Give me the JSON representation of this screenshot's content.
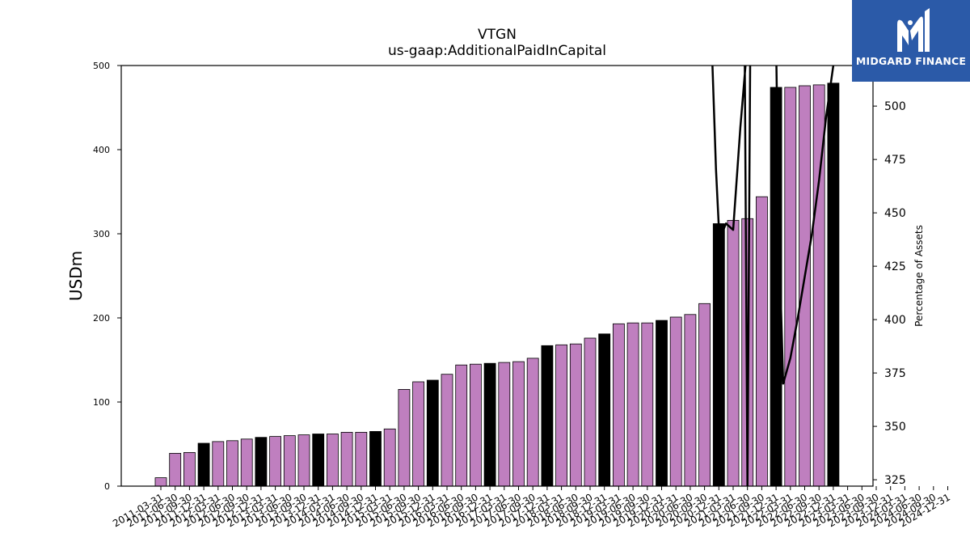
{
  "chart_data": {
    "type": "bar",
    "title": "VTGN",
    "subtitle": "us-gaap:AdditionalPaidInCapital",
    "ylabel": "USDm",
    "ylabel_right": "Percentage of Assets",
    "ylim": [
      0,
      500
    ],
    "yticks": [
      0,
      100,
      200,
      300,
      400,
      500
    ],
    "ylim_right": [
      322,
      519
    ],
    "yticks_right": [
      325,
      350,
      375,
      400,
      425,
      450,
      475,
      500
    ],
    "categories": [
      "2011-03-31",
      "2011-06-30",
      "2011-09-30",
      "2011-12-31",
      "2012-03-31",
      "2012-06-30",
      "2012-09-30",
      "2012-12-31",
      "2013-03-31",
      "2013-06-30",
      "2013-09-30",
      "2013-12-31",
      "2014-03-31",
      "2014-06-30",
      "2014-09-30",
      "2014-12-31",
      "2015-03-31",
      "2015-06-30",
      "2015-09-30",
      "2015-12-31",
      "2016-03-31",
      "2016-06-30",
      "2016-09-30",
      "2016-12-31",
      "2017-03-31",
      "2017-06-30",
      "2017-09-30",
      "2017-12-31",
      "2018-03-31",
      "2018-06-30",
      "2018-09-30",
      "2018-12-31",
      "2019-03-31",
      "2019-06-30",
      "2019-09-30",
      "2019-12-31",
      "2020-03-31",
      "2020-06-30",
      "2020-09-30",
      "2020-12-31",
      "2021-03-31",
      "2021-06-30",
      "2021-09-30",
      "2021-12-31",
      "2022-03-31",
      "2022-06-30",
      "2022-09-30",
      "2022-12-31",
      "2023-03-31",
      "2023-06-30",
      "2023-09-30",
      "2023-12-31",
      "2024-03-31",
      "2024-06-30",
      "2024-09-30",
      "2024-12-31"
    ],
    "bars": [
      {
        "label": "2011-03-31",
        "value": 10,
        "highlight": false
      },
      {
        "label": "2011-06-30",
        "value": 39,
        "highlight": false
      },
      {
        "label": "2011-09-30",
        "value": 40,
        "highlight": false
      },
      {
        "label": "2011-12-31",
        "value": 51,
        "highlight": true
      },
      {
        "label": "2012-03-31",
        "value": 53,
        "highlight": false
      },
      {
        "label": "2012-06-30",
        "value": 54,
        "highlight": false
      },
      {
        "label": "2012-09-30",
        "value": 56,
        "highlight": false
      },
      {
        "label": "2012-12-31",
        "value": 58,
        "highlight": true
      },
      {
        "label": "2013-03-31",
        "value": 59,
        "highlight": false
      },
      {
        "label": "2013-06-30",
        "value": 60,
        "highlight": false
      },
      {
        "label": "2013-09-30",
        "value": 61,
        "highlight": false
      },
      {
        "label": "2013-12-31",
        "value": 62,
        "highlight": true
      },
      {
        "label": "2014-03-31",
        "value": 62,
        "highlight": false
      },
      {
        "label": "2014-06-30",
        "value": 64,
        "highlight": false
      },
      {
        "label": "2014-09-30",
        "value": 64,
        "highlight": false
      },
      {
        "label": "2014-12-31",
        "value": 65,
        "highlight": true
      },
      {
        "label": "2015-03-31",
        "value": 68,
        "highlight": false
      },
      {
        "label": "2015-06-30",
        "value": 115,
        "highlight": false
      },
      {
        "label": "2015-09-30",
        "value": 124,
        "highlight": false
      },
      {
        "label": "2015-12-31",
        "value": 126,
        "highlight": true
      },
      {
        "label": "2016-03-31",
        "value": 133,
        "highlight": false
      },
      {
        "label": "2016-06-30",
        "value": 144,
        "highlight": false
      },
      {
        "label": "2016-09-30",
        "value": 145,
        "highlight": false
      },
      {
        "label": "2016-12-31",
        "value": 146,
        "highlight": true
      },
      {
        "label": "2017-03-31",
        "value": 147,
        "highlight": false
      },
      {
        "label": "2017-06-30",
        "value": 148,
        "highlight": false
      },
      {
        "label": "2017-09-30",
        "value": 152,
        "highlight": false
      },
      {
        "label": "2017-12-31",
        "value": 167,
        "highlight": true
      },
      {
        "label": "2018-03-31",
        "value": 168,
        "highlight": false
      },
      {
        "label": "2018-06-30",
        "value": 169,
        "highlight": false
      },
      {
        "label": "2018-09-30",
        "value": 176,
        "highlight": false
      },
      {
        "label": "2018-12-31",
        "value": 181,
        "highlight": true
      },
      {
        "label": "2019-03-31",
        "value": 193,
        "highlight": false
      },
      {
        "label": "2019-06-30",
        "value": 194,
        "highlight": false
      },
      {
        "label": "2019-09-30",
        "value": 194,
        "highlight": false
      },
      {
        "label": "2019-12-31",
        "value": 197,
        "highlight": true
      },
      {
        "label": "2020-03-31",
        "value": 201,
        "highlight": false
      },
      {
        "label": "2020-06-30",
        "value": 204,
        "highlight": false
      },
      {
        "label": "2020-09-30",
        "value": 217,
        "highlight": false
      },
      {
        "label": "2020-12-31",
        "value": 312,
        "highlight": true
      },
      {
        "label": "2021-03-31",
        "value": 316,
        "highlight": false
      },
      {
        "label": "2021-06-30",
        "value": 318,
        "highlight": false
      },
      {
        "label": "2021-09-30",
        "value": 344,
        "highlight": false
      },
      {
        "label": "2021-12-31",
        "value": 474,
        "highlight": true
      },
      {
        "label": "2022-03-31",
        "value": 474,
        "highlight": false
      },
      {
        "label": "2022-06-30",
        "value": 476,
        "highlight": false
      },
      {
        "label": "2022-09-30",
        "value": 477,
        "highlight": false
      },
      {
        "label": "2022-12-31",
        "value": 479,
        "highlight": true
      }
    ],
    "line_series": {
      "axis": "right",
      "points": [
        {
          "x": 38.5,
          "y": 530
        },
        {
          "x": 38.8,
          "y": 470
        },
        {
          "x": 39.0,
          "y": 443
        },
        {
          "x": 39.2,
          "y": 440
        },
        {
          "x": 39.5,
          "y": 445
        },
        {
          "x": 40.0,
          "y": 442
        },
        {
          "x": 40.5,
          "y": 490
        },
        {
          "x": 41.0,
          "y": 530
        },
        {
          "x": 40.8,
          "y": 530
        },
        {
          "x": 40.9,
          "y": 430
        },
        {
          "x": 41.0,
          "y": 322
        },
        {
          "x": 41.1,
          "y": 430
        },
        {
          "x": 41.2,
          "y": 530
        },
        {
          "x": 43.0,
          "y": 530
        },
        {
          "x": 43.2,
          "y": 440
        },
        {
          "x": 43.5,
          "y": 370
        },
        {
          "x": 44.0,
          "y": 382
        },
        {
          "x": 44.5,
          "y": 400
        },
        {
          "x": 45.0,
          "y": 420
        },
        {
          "x": 45.5,
          "y": 440
        },
        {
          "x": 46.0,
          "y": 465
        },
        {
          "x": 46.5,
          "y": 495
        },
        {
          "x": 47.0,
          "y": 519
        }
      ]
    }
  },
  "logo": {
    "text": "MIDGARD FINANCE",
    "icon": "midgard-m-logo-icon",
    "bg_color": "#2b5aa8"
  },
  "colors": {
    "bar": "#bf7fbf",
    "bar_highlight": "#000000",
    "bar_edge": "#000000",
    "line": "#000000"
  }
}
